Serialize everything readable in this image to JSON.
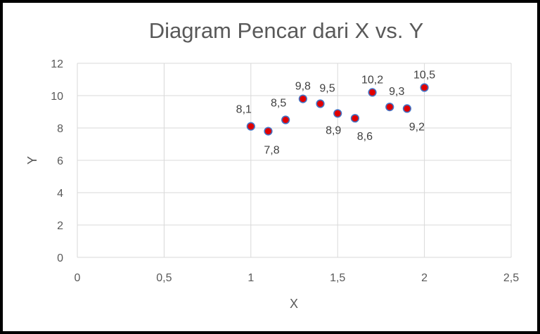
{
  "chart_data": {
    "type": "scatter",
    "title": "Diagram Pencar dari X vs. Y",
    "xlabel": "X",
    "ylabel": "Y",
    "xlim": [
      0,
      2.5
    ],
    "ylim": [
      0,
      12
    ],
    "x_ticks": [
      "0",
      "0,5",
      "1",
      "1,5",
      "2",
      "2,5"
    ],
    "y_ticks": [
      "0",
      "2",
      "4",
      "6",
      "8",
      "10",
      "12"
    ],
    "grid": true,
    "legend": "none",
    "marker_fill": "#e00000",
    "marker_edge": "#4472c4",
    "points": [
      {
        "x": 1.0,
        "y": 8.1,
        "label": "8,1",
        "label_pos": "above-left"
      },
      {
        "x": 1.1,
        "y": 7.8,
        "label": "7,8",
        "label_pos": "below"
      },
      {
        "x": 1.2,
        "y": 8.5,
        "label": "8,5",
        "label_pos": "above-left"
      },
      {
        "x": 1.3,
        "y": 9.8,
        "label": "9,8",
        "label_pos": "above"
      },
      {
        "x": 1.4,
        "y": 9.5,
        "label": "9,5",
        "label_pos": "above-right"
      },
      {
        "x": 1.5,
        "y": 8.9,
        "label": "8,9",
        "label_pos": "below-left"
      },
      {
        "x": 1.6,
        "y": 8.6,
        "label": "8,6",
        "label_pos": "below-right"
      },
      {
        "x": 1.7,
        "y": 10.2,
        "label": "10,2",
        "label_pos": "above"
      },
      {
        "x": 1.8,
        "y": 9.3,
        "label": "9,3",
        "label_pos": "above-right"
      },
      {
        "x": 1.9,
        "y": 9.2,
        "label": "9,2",
        "label_pos": "below-right"
      },
      {
        "x": 2.0,
        "y": 10.5,
        "label": "10,5",
        "label_pos": "above"
      }
    ]
  }
}
